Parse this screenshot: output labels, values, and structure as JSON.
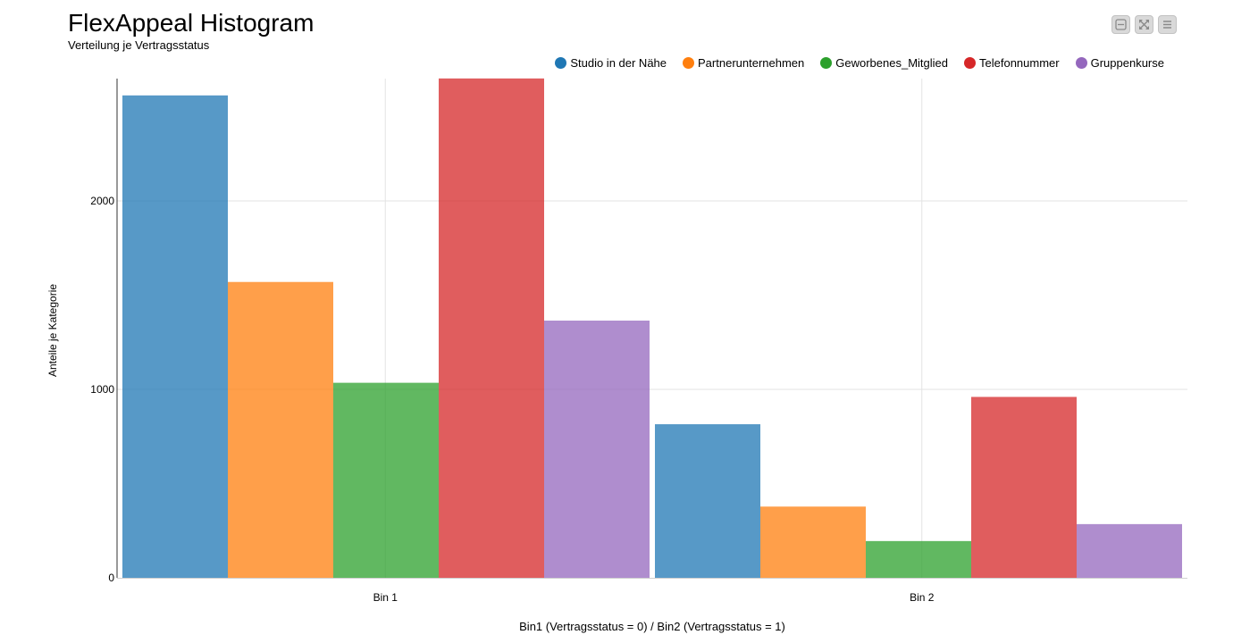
{
  "header": {
    "title": "FlexAppeal Histogram",
    "subtitle": "Verteilung je Vertragsstatus"
  },
  "toolbar": {
    "buttons": [
      {
        "name": "collapse-icon"
      },
      {
        "name": "expand-icon"
      },
      {
        "name": "menu-icon"
      }
    ]
  },
  "chart_data": {
    "type": "bar",
    "title": "FlexAppeal Histogram",
    "subtitle": "Verteilung je Vertragsstatus",
    "xlabel": "Bin1 (Vertragsstatus = 0) / Bin2 (Vertragsstatus = 1)",
    "ylabel": "Anteile je Kategorie",
    "categories": [
      "Bin 1",
      "Bin 2"
    ],
    "yticks": [
      0,
      1000,
      2000
    ],
    "ylim": [
      0,
      2650
    ],
    "grid": true,
    "legend_position": "top-right",
    "series": [
      {
        "name": "Studio in der Nähe",
        "color": "#1f77b4",
        "values": [
          2560,
          815
        ]
      },
      {
        "name": "Partnerunternehmen",
        "color": "#ff7f0e",
        "values": [
          1570,
          378
        ]
      },
      {
        "name": "Geworbenes_Mitglied",
        "color": "#2ca02c",
        "values": [
          1035,
          195
        ]
      },
      {
        "name": "Telefonnummer",
        "color": "#d62728",
        "values": [
          2650,
          960
        ]
      },
      {
        "name": "Gruppenkurse",
        "color": "#9467bd",
        "values": [
          1365,
          285
        ]
      }
    ]
  }
}
